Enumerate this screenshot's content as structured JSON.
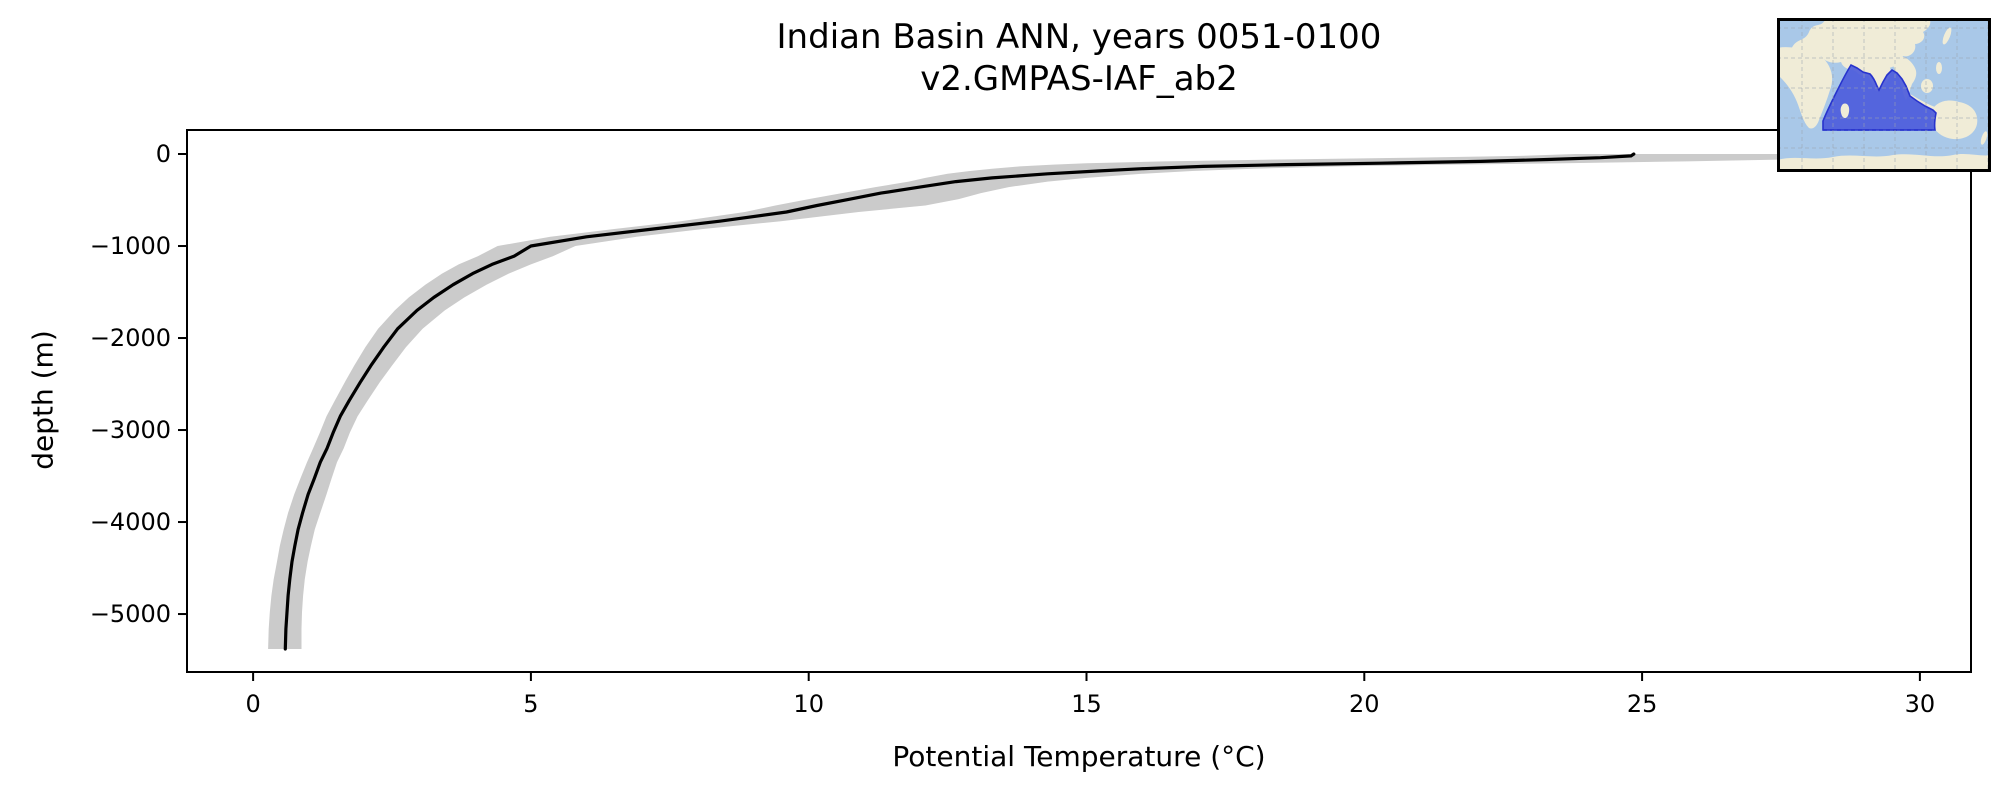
{
  "figure": {
    "background": "#ffffff"
  },
  "chart_data": {
    "type": "line",
    "title": "Indian Basin ANN, years 0051-0100",
    "subtitle": "v2.GMPAS-IAF_ab2",
    "xlabel": "Potential Temperature (°C)",
    "ylabel": "depth (m)",
    "xlim": [
      -1.19,
      30.92
    ],
    "ylim": [
      -5630,
      261
    ],
    "grid": false,
    "legend": "none",
    "line_color": "#000000",
    "line_width": 3.2,
    "band_color": "#cbcbcb",
    "x_ticks": {
      "values": [
        0,
        5,
        10,
        15,
        20,
        25,
        30
      ],
      "labels": [
        "0",
        "5",
        "10",
        "15",
        "20",
        "25",
        "30"
      ]
    },
    "y_ticks": {
      "values": [
        0,
        -1000,
        -2000,
        -3000,
        -4000,
        -5000
      ],
      "labels": [
        "0",
        "−1000",
        "−2000",
        "−3000",
        "−4000",
        "−5000"
      ]
    },
    "series": [
      {
        "name": "mean potential temperature profile",
        "style": "solid black line"
      },
      {
        "name": "spread envelope (min/max shading)",
        "style": "grey band"
      }
    ],
    "profile": {
      "depth_m": [
        0,
        -20,
        -40,
        -60,
        -80,
        -100,
        -115,
        -135,
        -160,
        -185,
        -215,
        -260,
        -300,
        -360,
        -425,
        -490,
        -560,
        -630,
        -730,
        -815,
        -900,
        -1000,
        -1110,
        -1200,
        -1300,
        -1420,
        -1560,
        -1700,
        -1900,
        -2100,
        -2300,
        -2480,
        -2680,
        -2850,
        -3030,
        -3200,
        -3350,
        -3530,
        -3700,
        -3900,
        -4080,
        -4260,
        -4430,
        -4620,
        -4800,
        -4980,
        -5160,
        -5270,
        -5380
      ],
      "mean_c": [
        24.85,
        24.8,
        24.25,
        23.3,
        22.1,
        20.3,
        18.6,
        17.1,
        16.0,
        15.2,
        14.3,
        13.3,
        12.65,
        12.0,
        11.3,
        10.75,
        10.15,
        9.6,
        8.4,
        7.2,
        6.0,
        5.0,
        4.7,
        4.3,
        3.95,
        3.6,
        3.25,
        2.95,
        2.6,
        2.35,
        2.12,
        1.93,
        1.73,
        1.57,
        1.44,
        1.33,
        1.21,
        1.1,
        0.99,
        0.89,
        0.81,
        0.75,
        0.7,
        0.66,
        0.63,
        0.61,
        0.59,
        0.585,
        0.58
      ],
      "lo_c": [
        23.8,
        22.8,
        20.8,
        18.5,
        16.4,
        15.0,
        14.4,
        13.8,
        13.3,
        12.9,
        12.5,
        12.1,
        11.8,
        11.2,
        10.6,
        10.0,
        9.4,
        8.85,
        7.7,
        6.5,
        5.35,
        4.4,
        4.05,
        3.7,
        3.4,
        3.1,
        2.8,
        2.55,
        2.25,
        2.02,
        1.82,
        1.65,
        1.47,
        1.32,
        1.2,
        1.08,
        0.97,
        0.85,
        0.74,
        0.63,
        0.55,
        0.48,
        0.43,
        0.37,
        0.33,
        0.3,
        0.28,
        0.275,
        0.27
      ],
      "hi_c": [
        29.9,
        29.6,
        28.9,
        27.6,
        25.8,
        23.6,
        21.6,
        19.6,
        18.0,
        16.9,
        16.0,
        15.0,
        14.3,
        13.6,
        13.1,
        12.7,
        12.1,
        10.9,
        9.5,
        8.1,
        6.9,
        5.8,
        5.4,
        5.0,
        4.6,
        4.2,
        3.8,
        3.45,
        3.05,
        2.75,
        2.5,
        2.28,
        2.06,
        1.88,
        1.74,
        1.63,
        1.51,
        1.41,
        1.32,
        1.21,
        1.11,
        1.04,
        0.98,
        0.93,
        0.9,
        0.88,
        0.87,
        0.87,
        0.87
      ]
    },
    "inset_map": {
      "description": "world map inset highlighting the Indian Ocean basin",
      "colors": {
        "ocean": "#a9c8e8",
        "land": "#f0ecd7",
        "basin_fill": "#4d5cdb",
        "basin_edge": "#2733cd",
        "gridlines": "#9aa3ad",
        "border": "#000000"
      }
    }
  }
}
